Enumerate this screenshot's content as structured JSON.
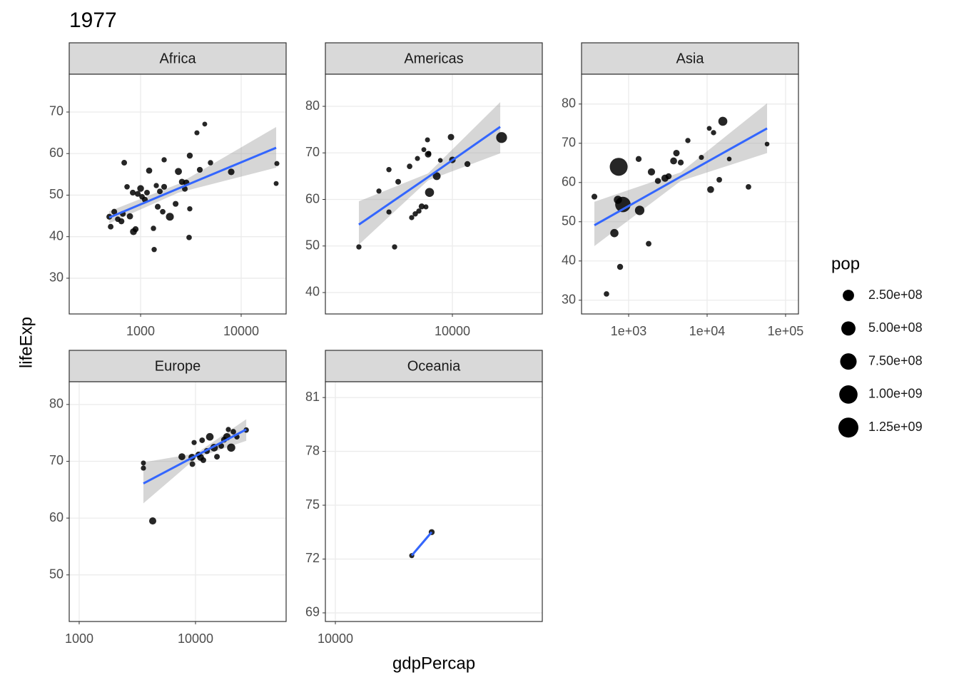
{
  "title": "1977",
  "x_label": "gdpPercap",
  "y_label": "lifeExp",
  "size_legend": {
    "title": "pop",
    "color": "#000000",
    "breaks": [
      {
        "value": 250000000,
        "label": "2.50e+08"
      },
      {
        "value": 500000000,
        "label": "5.00e+08"
      },
      {
        "value": 750000000,
        "label": "7.50e+08"
      },
      {
        "value": 1000000000,
        "label": "1.00e+09"
      },
      {
        "value": 1250000000,
        "label": "1.25e+09"
      }
    ]
  },
  "chart_data": [
    {
      "type": "scatter",
      "title": "Africa",
      "log_x": true,
      "grid": true,
      "color": "#000000",
      "xlim": [
        195,
        28000
      ],
      "ylim": [
        21.4,
        79.1
      ],
      "xticks": [
        1000,
        10000
      ],
      "yticks": [
        30,
        40,
        50,
        60,
        70
      ],
      "x": [
        488,
        504,
        547,
        593,
        644,
        665,
        687,
        733,
        783,
        836,
        849,
        891,
        937,
        1000,
        1033,
        1103,
        1158,
        1216,
        1342,
        1364,
        1480,
        1554,
        1660,
        1714,
        1954,
        2229,
        2377,
        2578,
        2843,
        3035,
        3083,
        3083,
        3631,
        3879,
        4345,
        4955,
        7962,
        22650,
        22280,
        2754,
        1432,
        1714
      ],
      "y": [
        44.8,
        42.4,
        46.0,
        44.2,
        43.7,
        45.5,
        57.8,
        52.0,
        44.9,
        50.6,
        41.2,
        41.8,
        50.3,
        51.6,
        49.6,
        48.9,
        50.6,
        55.9,
        42.0,
        36.9,
        47.2,
        50.9,
        46.0,
        58.5,
        44.8,
        47.9,
        55.7,
        53.2,
        53.0,
        39.8,
        59.5,
        46.7,
        65.0,
        56.1,
        67.1,
        57.8,
        55.6,
        57.6,
        52.8,
        51.5,
        52.3,
        52.0
      ],
      "size": [
        12000000,
        9000000,
        12000000,
        8000000,
        15000000,
        12000000,
        10000000,
        7000000,
        20000000,
        12000000,
        34000000,
        15000000,
        12000000,
        30000000,
        8000000,
        12000000,
        10000000,
        18000000,
        6000000,
        5000000,
        12000000,
        10000000,
        8000000,
        5000000,
        67000000,
        12000000,
        39000000,
        17000000,
        20000000,
        7000000,
        15000000,
        5000000,
        3000000,
        12000000,
        2000000,
        6000000,
        27000000,
        3000000,
        2000000,
        10000000,
        5000000,
        12000000
      ],
      "fit": {
        "color": "#3366ff",
        "x": [
          488,
          2377,
          22280
        ],
        "y": [
          44.6,
          51.6,
          61.4
        ],
        "lower": [
          43.2,
          50.6,
          56.6
        ],
        "upper": [
          46.1,
          52.7,
          66.4
        ]
      }
    },
    {
      "type": "scatter",
      "title": "Americas",
      "log_x": true,
      "grid": true,
      "color": "#000000",
      "xlim": [
        1026,
        50100
      ],
      "ylim": [
        35.4,
        86.9
      ],
      "xticks": [
        10000
      ],
      "yticks": [
        40,
        50,
        60,
        70,
        80
      ],
      "x": [
        1871,
        2679,
        3206,
        3206,
        3548,
        3784,
        4645,
        4819,
        5140,
        5344,
        5483,
        5768,
        5995,
        6223,
        6397,
        6471,
        6637,
        6550,
        7551,
        8054,
        9750,
        10000,
        13090,
        24160
      ],
      "y": [
        49.8,
        61.8,
        66.4,
        57.3,
        49.8,
        63.8,
        67.1,
        56.1,
        56.9,
        68.8,
        57.5,
        58.5,
        70.7,
        58.4,
        72.8,
        69.7,
        61.5,
        69.9,
        65.0,
        68.4,
        73.4,
        68.5,
        67.6,
        73.3
      ],
      "size": [
        5000000,
        4000000,
        5000000,
        4000000,
        5000000,
        10000000,
        8000000,
        4000000,
        6000000,
        3000000,
        5000000,
        15000000,
        2000000,
        3000000,
        3000000,
        25000000,
        114000000,
        2000000,
        63000000,
        1000000,
        23000000,
        26000000,
        14000000,
        220000000
      ],
      "fit": {
        "color": "#3366ff",
        "x": [
          1871,
          6471,
          23570
        ],
        "y": [
          54.6,
          64.8,
          75.6
        ],
        "lower": [
          50.3,
          64.1,
          69.9
        ],
        "upper": [
          59.6,
          65.6,
          80.9
        ]
      }
    },
    {
      "type": "scatter",
      "title": "Asia",
      "log_x": true,
      "grid": true,
      "color": "#000000",
      "xlim": [
        251,
        145900
      ],
      "ylim": [
        26.5,
        87.6
      ],
      "xticks": [
        {
          "value": 1000,
          "label": "1e+03"
        },
        {
          "value": 10000,
          "label": "1e+04"
        },
        {
          "value": 100000,
          "label": "1e+05"
        }
      ],
      "yticks": [
        30,
        40,
        50,
        60,
        70,
        80
      ],
      "x": [
        366,
        522,
        658,
        747,
        730,
        778,
        845,
        1341,
        1382,
        1798,
        1953,
        2360,
        2908,
        3228,
        3742,
        4065,
        4614,
        5685,
        8454,
        10650,
        11090,
        12080,
        14290,
        15860,
        19140,
        33650,
        58100
      ],
      "y": [
        56.4,
        31.6,
        47.1,
        64.0,
        55.6,
        38.5,
        54.4,
        66.0,
        52.9,
        44.4,
        62.7,
        60.4,
        61.1,
        61.6,
        65.5,
        67.5,
        65.1,
        70.7,
        66.4,
        73.8,
        58.2,
        72.7,
        60.7,
        75.6,
        66.0,
        58.9,
        69.8
      ],
      "size": [
        12000000,
        7000000,
        80000000,
        943000000,
        78000000,
        14900000,
        634000000,
        14000000,
        136000000,
        9000000,
        46000000,
        15000000,
        44000000,
        17000000,
        36000000,
        25000000,
        13000000,
        5000000,
        3000000,
        2000000,
        34000000,
        5000000,
        9000000,
        114000000,
        1000000,
        8000000,
        1000000
      ],
      "fit": {
        "color": "#3366ff",
        "x": [
          366,
          4614,
          58100
        ],
        "y": [
          49.1,
          61.5,
          73.8
        ],
        "lower": [
          43.8,
          60.4,
          67.5
        ],
        "upper": [
          55.1,
          62.6,
          80.2
        ]
      }
    },
    {
      "type": "scatter",
      "title": "Europe",
      "log_x": true,
      "grid": true,
      "color": "#000000",
      "xlim": [
        821,
        60100
      ],
      "ylim": [
        41.8,
        84.0
      ],
      "xticks": [
        1000,
        10000
      ],
      "yticks": [
        50,
        60,
        70,
        80
      ],
      "x": [
        3565,
        3565,
        4285,
        7638,
        9311,
        9727,
        9400,
        11040,
        11670,
        12530,
        13270,
        14450,
        15290,
        16630,
        17590,
        18620,
        19150,
        20260,
        21150,
        22680,
        27300,
        11400,
        10600
      ],
      "y": [
        69.7,
        68.8,
        59.5,
        70.8,
        70.7,
        73.3,
        69.5,
        70.7,
        70.2,
        71.8,
        74.3,
        72.4,
        70.8,
        72.7,
        73.8,
        74.3,
        75.6,
        72.4,
        75.2,
        74.3,
        75.5,
        73.7,
        71.2
      ],
      "size": [
        2500000,
        4000000,
        42000000,
        36000000,
        35000000,
        4000000,
        9000000,
        35000000,
        10000000,
        15000000,
        56000000,
        56000000,
        10000000,
        10000000,
        14000000,
        53000000,
        4000000,
        78000000,
        8000000,
        6000000,
        6000000,
        9000000,
        10000000
      ],
      "fit": {
        "color": "#3366ff",
        "x": [
          3565,
          10150,
          27300
        ],
        "y": [
          66.1,
          71.0,
          75.6
        ],
        "lower": [
          62.6,
          70.6,
          73.6
        ],
        "upper": [
          69.8,
          71.4,
          77.4
        ]
      }
    },
    {
      "type": "scatter",
      "title": "Oceania",
      "log_x": true,
      "grid": true,
      "color": "#000000",
      "xlim": [
        9387,
        37060
      ],
      "ylim": [
        68.52,
        81.88
      ],
      "xticks": [
        10000
      ],
      "yticks": [
        69,
        72,
        75,
        78,
        81
      ],
      "x": [
        16220,
        18400
      ],
      "y": [
        72.19,
        73.5
      ],
      "size": [
        3200000,
        14200000
      ],
      "fit": {
        "color": "#3366ff",
        "x": [
          16220,
          18400
        ],
        "y": [
          72.2,
          73.5
        ],
        "lower": [
          72.1,
          73.4
        ],
        "upper": [
          72.3,
          73.6
        ]
      }
    }
  ]
}
